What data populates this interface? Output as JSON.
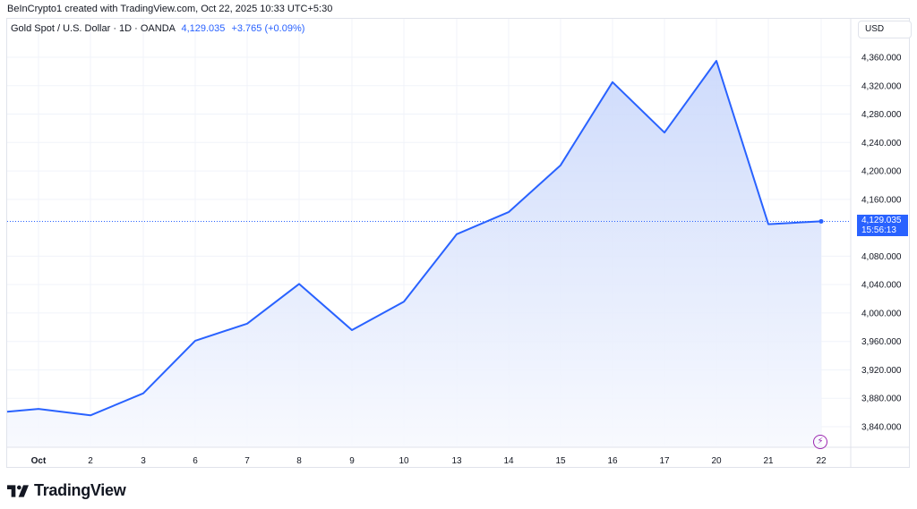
{
  "attribution": "BeInCrypto1 created with TradingView.com, Oct 22, 2025 10:33 UTC+5:30",
  "legend": {
    "symbol": "Gold Spot / U.S. Dollar · 1D · OANDA",
    "price": "4,129.035",
    "change": "+3.765 (+0.09%)"
  },
  "currency_button": "USD",
  "price_tag": {
    "price": "4,129.035",
    "countdown": "15:56:13"
  },
  "brand": "TradingView",
  "colors": {
    "line": "#2962ff",
    "fill_top": "#c9d7fb",
    "fill_bottom": "#f7f9fe",
    "grid": "#f0f3fa",
    "label": "#131722"
  },
  "chart_data": {
    "type": "area",
    "title": "Gold Spot / U.S. Dollar · 1D · OANDA",
    "xlabel": "",
    "ylabel": "USD",
    "ylim": [
      3820,
      4380
    ],
    "grid": true,
    "legend_position": "top-left",
    "x_tick_labels": [
      "Oct",
      "2",
      "3",
      "6",
      "7",
      "8",
      "9",
      "10",
      "13",
      "14",
      "15",
      "16",
      "17",
      "20",
      "21",
      "22"
    ],
    "y_tick_labels": [
      "4,360.000",
      "4,320.000",
      "4,280.000",
      "4,240.000",
      "4,200.000",
      "4,160.000",
      "4,080.000",
      "4,040.000",
      "4,000.000",
      "3,960.000",
      "3,920.000",
      "3,880.000",
      "3,840.000"
    ],
    "y_ticks": [
      4360,
      4320,
      4280,
      4240,
      4200,
      4160,
      4080,
      4040,
      4000,
      3960,
      3920,
      3880,
      3840
    ],
    "categories": [
      "Sep 30",
      "Oct 1",
      "Oct 2",
      "Oct 3",
      "Oct 6",
      "Oct 7",
      "Oct 8",
      "Oct 9",
      "Oct 10",
      "Oct 13",
      "Oct 14",
      "Oct 15",
      "Oct 16",
      "Oct 17",
      "Oct 20",
      "Oct 21",
      "Oct 22"
    ],
    "series": [
      {
        "name": "Gold Spot / U.S. Dollar",
        "values": [
          3861,
          3865,
          3856,
          3887,
          3961,
          3985,
          4041,
          3976,
          4016,
          4111,
          4142,
          4208,
          4325,
          4254,
          4355,
          4125,
          4129.035
        ]
      }
    ],
    "last_price": 4129.035,
    "annotations": [
      "4,129.035",
      "15:56:13"
    ]
  }
}
